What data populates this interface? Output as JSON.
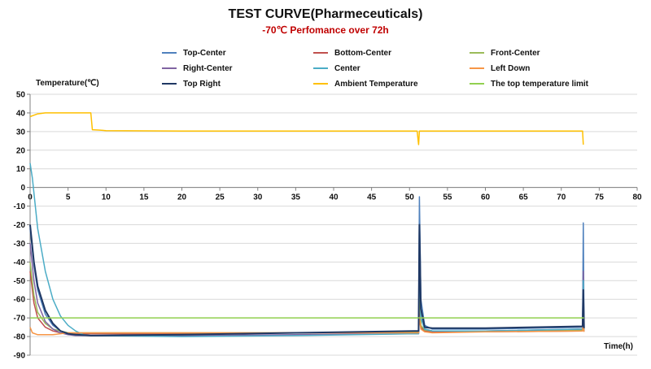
{
  "chart_data": {
    "type": "line",
    "title": "TEST CURVE(Pharmeceuticals)",
    "subtitle": "-70℃ Perfomance over 72h",
    "xlabel": "Time(h)",
    "ylabel": "Temperature(℃)",
    "xlim": [
      0,
      80
    ],
    "ylim": [
      -90,
      50
    ],
    "xticks": [
      0,
      5,
      10,
      15,
      20,
      25,
      30,
      35,
      40,
      45,
      50,
      55,
      60,
      65,
      70,
      75,
      80
    ],
    "yticks": [
      50,
      40,
      30,
      20,
      10,
      0,
      -10,
      -20,
      -30,
      -40,
      -50,
      -60,
      -70,
      -80,
      -90
    ],
    "grid": true,
    "legend_position": "top",
    "series": [
      {
        "name": "Top-Center",
        "color": "#4f81bd",
        "x": [
          0,
          0.5,
          1,
          2,
          3,
          4,
          5,
          6,
          8,
          20,
          35,
          51.2,
          51.3,
          51.5,
          52,
          53,
          60,
          72.8,
          72.9,
          73
        ],
        "y": [
          -22,
          -42,
          -55,
          -68,
          -74,
          -77,
          -78,
          -78.5,
          -78.5,
          -78.5,
          -78,
          -77.5,
          -5,
          -60,
          -74,
          -76,
          -76,
          -75,
          -19,
          -76
        ]
      },
      {
        "name": "Bottom-Center",
        "color": "#c0504d",
        "x": [
          0,
          0.5,
          1,
          2,
          3,
          4,
          5,
          6,
          8,
          20,
          35,
          51.2,
          51.3,
          51.5,
          52,
          53,
          60,
          72.8,
          72.9,
          73
        ],
        "y": [
          -45,
          -62,
          -70,
          -75,
          -77,
          -78,
          -78.5,
          -78.5,
          -78.5,
          -78.5,
          -78,
          -78,
          -60,
          -75,
          -77,
          -77.5,
          -77.5,
          -77,
          -65,
          -77
        ]
      },
      {
        "name": "Front-Center",
        "color": "#9bbb59",
        "x": [
          0,
          0.5,
          1,
          2,
          3,
          4,
          5,
          6,
          8,
          20,
          35,
          51.2,
          51.3,
          51.5,
          52,
          53,
          60,
          72.8,
          72.9,
          73
        ],
        "y": [
          -40,
          -58,
          -67,
          -73,
          -76,
          -77,
          -78,
          -78,
          -78,
          -78,
          -78,
          -77.5,
          -55,
          -74,
          -76.5,
          -77,
          -77,
          -76.5,
          -60,
          -77
        ]
      },
      {
        "name": "Right-Center",
        "color": "#8064a2",
        "x": [
          0,
          0.5,
          1,
          2,
          3,
          4,
          5,
          6,
          8,
          20,
          35,
          51.2,
          51.3,
          51.5,
          52,
          53,
          60,
          72.8,
          72.9,
          73
        ],
        "y": [
          -30,
          -50,
          -62,
          -72,
          -76,
          -78,
          -79,
          -79.5,
          -79.5,
          -79.5,
          -79,
          -78.5,
          -35,
          -70,
          -76,
          -77,
          -77,
          -76,
          -45,
          -77
        ]
      },
      {
        "name": "Center",
        "color": "#4bacc6",
        "x": [
          0,
          0.3,
          1,
          2,
          3,
          4,
          5,
          6,
          7,
          8,
          20,
          35,
          51.2,
          51.3,
          51.5,
          52,
          53,
          60,
          72.8,
          72.9,
          73
        ],
        "y": [
          13,
          5,
          -22,
          -45,
          -60,
          -69,
          -74,
          -77,
          -79,
          -79.5,
          -80,
          -79.5,
          -78.5,
          -40,
          -70,
          -76,
          -77,
          -77,
          -76,
          -50,
          -77
        ]
      },
      {
        "name": "Left Down",
        "color": "#f79646",
        "x": [
          0,
          0.3,
          1,
          2,
          3,
          4,
          5,
          6,
          8,
          20,
          35,
          51.2,
          51.3,
          51.5,
          52,
          53,
          60,
          72.8,
          72.9,
          73
        ],
        "y": [
          -75,
          -78,
          -79,
          -79,
          -79,
          -78.5,
          -78,
          -78,
          -78,
          -78,
          -78,
          -78,
          -70,
          -76,
          -77.5,
          -78,
          -77.5,
          -77,
          -72,
          -77.5
        ]
      },
      {
        "name": "Top Right",
        "color": "#1f3864",
        "x": [
          0,
          0.5,
          1,
          2,
          3,
          4,
          5,
          6,
          8,
          20,
          35,
          51.2,
          51.3,
          51.5,
          52,
          53,
          60,
          72.8,
          72.9,
          73
        ],
        "y": [
          -20,
          -40,
          -53,
          -66,
          -73,
          -77,
          -78.5,
          -79,
          -79.5,
          -79,
          -78,
          -77,
          -20,
          -65,
          -75,
          -75.5,
          -75.5,
          -74.5,
          -55,
          -75.5
        ]
      },
      {
        "name": "Ambient Temperature",
        "color": "#ffc000",
        "x": [
          0,
          0.3,
          1,
          2,
          3,
          5,
          7,
          8,
          8.2,
          9,
          10,
          20,
          30,
          40,
          51,
          51.2,
          51.3,
          51.5,
          55,
          65,
          72.5,
          72.8,
          72.9
        ],
        "y": [
          38,
          38.5,
          39.5,
          40,
          40,
          40,
          40,
          40,
          31,
          30.8,
          30.5,
          30.3,
          30.3,
          30.3,
          30.3,
          23,
          30.3,
          30.3,
          30.3,
          30.3,
          30.3,
          30.3,
          23
        ]
      },
      {
        "name": "The top temperature limit",
        "color": "#92d050",
        "x": [
          0,
          73
        ],
        "y": [
          -70,
          -70
        ]
      }
    ]
  }
}
